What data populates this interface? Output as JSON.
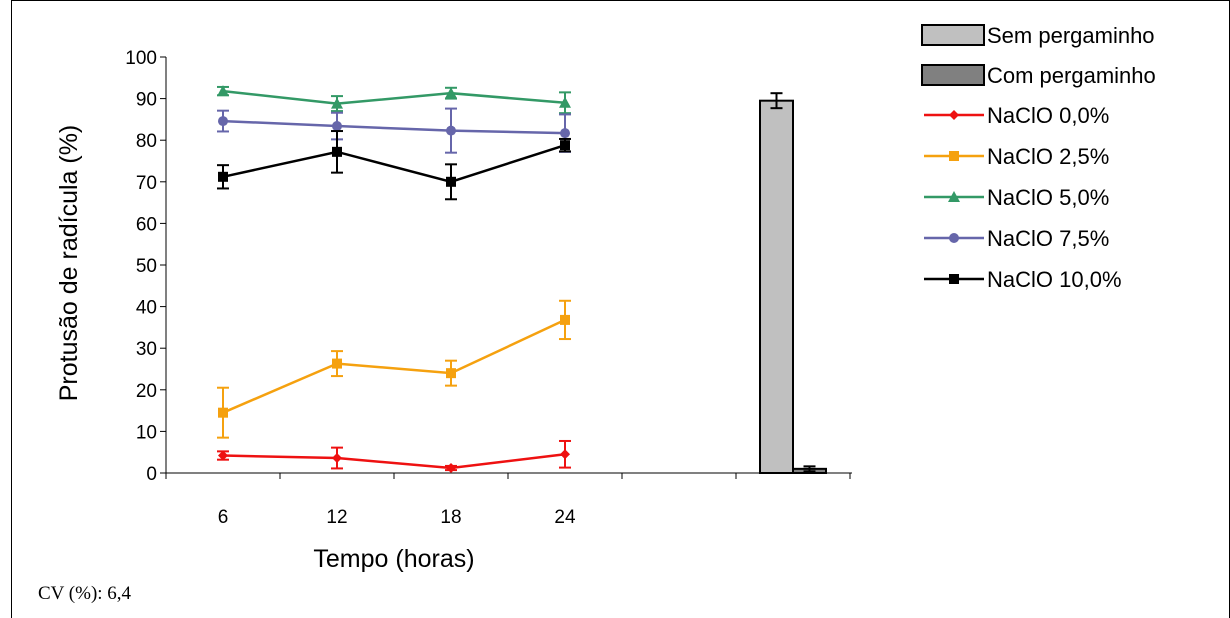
{
  "chart_data": {
    "type": "line",
    "title": "",
    "xlabel": "Tempo (horas)",
    "ylabel": "Protusão de radícula (%)",
    "ylim": [
      0,
      100
    ],
    "yticks": [
      0,
      10,
      20,
      30,
      40,
      50,
      60,
      70,
      80,
      90,
      100
    ],
    "categories": [
      "6",
      "12",
      "18",
      "24"
    ],
    "grid": false,
    "legend_position": "right",
    "series": [
      {
        "name": "NaClO 0,0%",
        "marker": "diamond",
        "color": "#ee1111",
        "values": [
          4.2,
          3.6,
          1.2,
          4.5
        ],
        "errors": [
          1.0,
          2.5,
          0.5,
          3.2
        ]
      },
      {
        "name": "NaClO 2,5%",
        "marker": "square",
        "color": "#f5a10f",
        "values": [
          14.5,
          26.3,
          24.0,
          36.8
        ],
        "errors": [
          6.0,
          3.0,
          3.0,
          4.6
        ]
      },
      {
        "name": "NaClO 5,0%",
        "marker": "triangle",
        "color": "#339966",
        "values": [
          91.8,
          88.8,
          91.3,
          89.0
        ],
        "errors": [
          1.0,
          1.8,
          1.3,
          2.5
        ]
      },
      {
        "name": "NaClO 7,5%",
        "marker": "circle",
        "color": "#6666aa",
        "values": [
          84.6,
          83.4,
          82.3,
          81.7
        ],
        "errors": [
          2.5,
          3.2,
          5.3,
          4.5
        ]
      },
      {
        "name": "NaClO 10,0%",
        "marker": "square",
        "color": "#000000",
        "values": [
          71.2,
          77.2,
          70.0,
          78.8
        ],
        "errors": [
          2.8,
          5.0,
          4.2,
          1.5
        ]
      }
    ],
    "bars": [
      {
        "name": "Sem pergaminho",
        "value": 89.5,
        "error": 1.8,
        "color": "#c0c0c0"
      },
      {
        "name": "Com pergaminho",
        "value": 1.0,
        "error": 0.6,
        "color": "#808080"
      }
    ]
  },
  "note": "CV (%): 6,4"
}
